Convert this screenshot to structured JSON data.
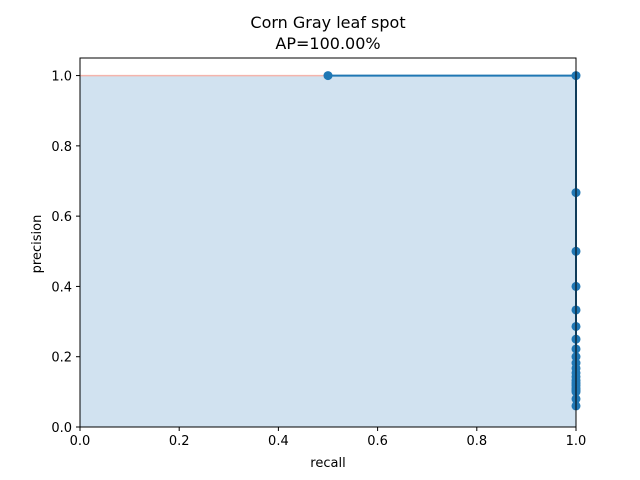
{
  "chart_data": {
    "type": "line",
    "title": "Corn Gray leaf spot",
    "subtitle": "AP=100.00%",
    "xlabel": "recall",
    "ylabel": "precision",
    "xlim": [
      0,
      1
    ],
    "ylim": [
      0,
      1.05
    ],
    "xticks": [
      "0.0",
      "0.2",
      "0.4",
      "0.6",
      "0.8",
      "1.0"
    ],
    "yticks": [
      "0.0",
      "0.2",
      "0.4",
      "0.6",
      "0.8",
      "1.0"
    ],
    "grid": false,
    "series": [
      {
        "x": [
          0.5,
          1.0,
          1.0,
          1.0,
          1.0,
          1.0,
          1.0,
          1.0,
          1.0,
          1.0,
          1.0,
          1.0,
          1.0,
          1.0,
          1.0,
          1.0,
          1.0,
          1.0,
          1.0,
          1.0,
          1.0,
          1.0
        ],
        "y": [
          1.0,
          1.0,
          0.667,
          0.5,
          0.4,
          0.333,
          0.286,
          0.25,
          0.222,
          0.2,
          0.182,
          0.167,
          0.154,
          0.143,
          0.133,
          0.125,
          0.118,
          0.111,
          0.105,
          0.1,
          0.08,
          0.06
        ]
      }
    ],
    "interpolated_precision": {
      "x": [
        0.0,
        1.0,
        1.0
      ],
      "y": [
        1.0,
        1.0,
        0.0
      ]
    },
    "colors": {
      "line": "#1f77b4",
      "fill": "#d1e2f0",
      "envelope": "#f4b4ac"
    }
  }
}
